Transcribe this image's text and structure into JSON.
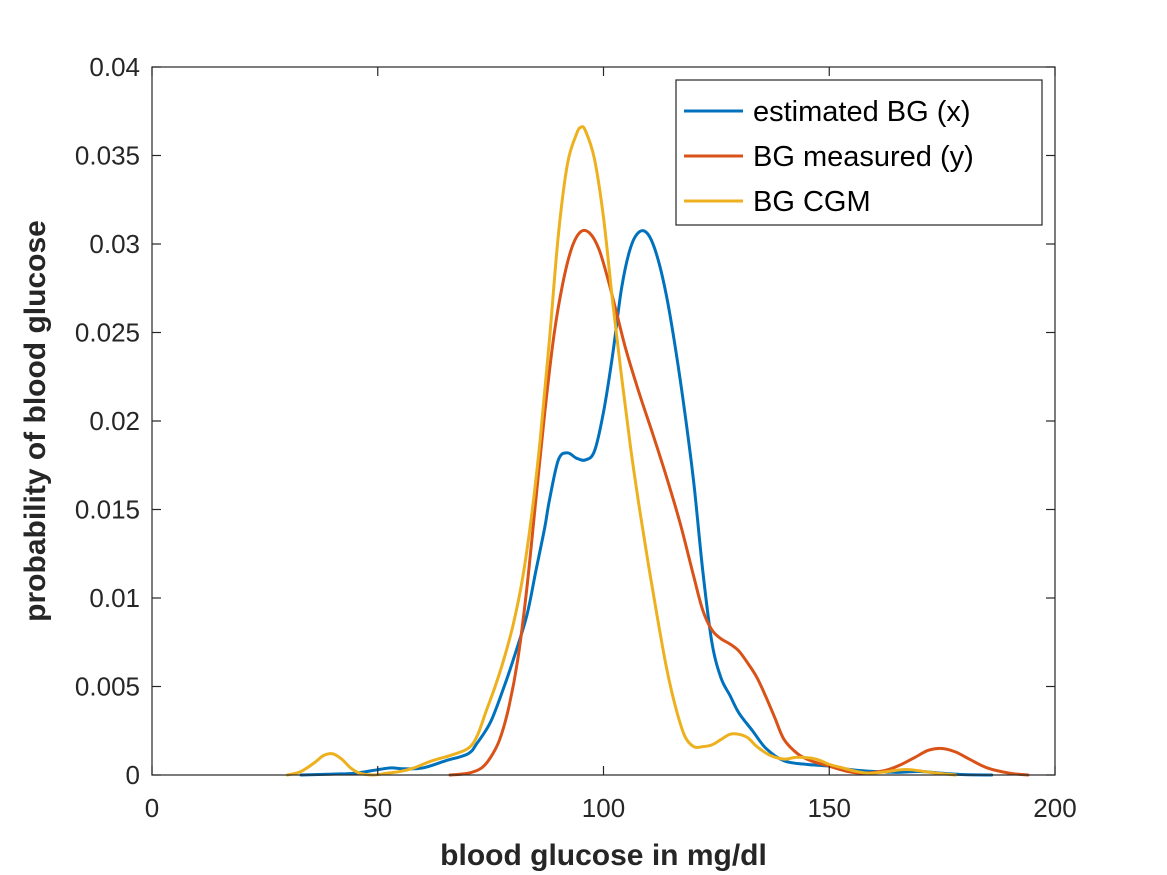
{
  "chart_data": {
    "type": "line",
    "title": "",
    "xlabel": "blood glucose in mg/dl",
    "ylabel": "probability of blood glucose",
    "xlim": [
      0,
      200
    ],
    "ylim": [
      0,
      0.04
    ],
    "xticks": [
      0,
      50,
      100,
      150,
      200
    ],
    "xtick_labels": [
      "0",
      "50",
      "100",
      "150",
      "200"
    ],
    "yticks": [
      0,
      0.005,
      0.01,
      0.015,
      0.02,
      0.025,
      0.03,
      0.035,
      0.04
    ],
    "ytick_labels": [
      "0",
      "0.005",
      "0.01",
      "0.015",
      "0.02",
      "0.025",
      "0.03",
      "0.035",
      "0.04"
    ],
    "grid": false,
    "legend_position": "top-right",
    "series": [
      {
        "name": "estimated BG (x)",
        "color": "#0072BD",
        "x": [
          33,
          40,
          45,
          50,
          53,
          56,
          60,
          65,
          70,
          72,
          75,
          78,
          80,
          83,
          85,
          87,
          88,
          90,
          92,
          94,
          96,
          98,
          100,
          102,
          104,
          106,
          108,
          110,
          112,
          114,
          116,
          118,
          120,
          122,
          124,
          126,
          128,
          130,
          133,
          136,
          140,
          145,
          150,
          155,
          160,
          165,
          170,
          175,
          180,
          186
        ],
        "y": [
          0,
          5e-05,
          0.0001,
          0.0003,
          0.0004,
          0.00035,
          0.0004,
          0.0008,
          0.0012,
          0.0018,
          0.003,
          0.005,
          0.0065,
          0.009,
          0.0115,
          0.014,
          0.0155,
          0.0178,
          0.0182,
          0.0179,
          0.0178,
          0.0183,
          0.0205,
          0.0237,
          0.0275,
          0.0298,
          0.0307,
          0.0305,
          0.0292,
          0.027,
          0.024,
          0.0205,
          0.0165,
          0.0115,
          0.0075,
          0.0055,
          0.0045,
          0.0035,
          0.0025,
          0.0015,
          0.0008,
          0.0006,
          0.0005,
          0.0003,
          0.0002,
          0.00015,
          0.0002,
          0.0001,
          2e-05,
          0
        ]
      },
      {
        "name": "BG measured (y)",
        "color": "#D95319",
        "x": [
          66,
          70,
          73,
          75,
          77,
          79,
          81,
          83,
          85,
          87,
          89,
          91,
          93,
          95,
          97,
          99,
          101,
          103,
          105,
          108,
          111,
          114,
          117,
          120,
          122,
          124,
          126,
          128,
          130,
          132,
          134,
          136,
          138,
          140,
          143,
          146,
          150,
          154,
          157,
          160,
          163,
          166,
          169,
          172,
          175,
          178,
          181,
          185,
          190,
          194
        ],
        "y": [
          0,
          0.0001,
          0.0004,
          0.001,
          0.002,
          0.0038,
          0.0065,
          0.0105,
          0.0155,
          0.0205,
          0.0248,
          0.0278,
          0.0298,
          0.0307,
          0.0306,
          0.0297,
          0.028,
          0.026,
          0.024,
          0.0215,
          0.0192,
          0.0168,
          0.0142,
          0.0112,
          0.0093,
          0.0082,
          0.0077,
          0.0074,
          0.007,
          0.0063,
          0.0055,
          0.0044,
          0.0032,
          0.002,
          0.0012,
          0.0008,
          0.0005,
          0.0002,
          0.0001,
          0.00015,
          0.0003,
          0.0006,
          0.001,
          0.0014,
          0.0015,
          0.0013,
          0.0009,
          0.0004,
          0.0001,
          0
        ]
      },
      {
        "name": "BG CGM",
        "color": "#EDB120",
        "x": [
          30,
          33,
          36,
          38,
          40,
          42,
          44,
          46,
          49,
          52,
          55,
          58,
          62,
          66,
          70,
          72,
          74,
          76,
          78,
          80,
          82,
          84,
          86,
          88,
          90,
          92,
          94,
          95,
          96,
          98,
          100,
          102,
          104,
          106,
          108,
          110,
          112,
          114,
          116,
          118,
          120,
          122,
          124,
          126,
          128,
          130,
          132,
          134,
          137,
          140,
          143,
          147,
          150,
          153,
          156,
          159,
          163,
          166,
          168,
          171,
          174,
          178
        ],
        "y": [
          0,
          0.0002,
          0.0007,
          0.0011,
          0.0012,
          0.0009,
          0.0004,
          0.0001,
          0,
          0.0001,
          0.0002,
          0.0004,
          0.0008,
          0.0011,
          0.0015,
          0.0022,
          0.0036,
          0.005,
          0.0066,
          0.0085,
          0.011,
          0.0145,
          0.019,
          0.0245,
          0.0305,
          0.0345,
          0.0362,
          0.0366,
          0.0364,
          0.0348,
          0.0315,
          0.0268,
          0.0225,
          0.0185,
          0.015,
          0.0118,
          0.0088,
          0.006,
          0.0038,
          0.0022,
          0.0016,
          0.0016,
          0.0017,
          0.002,
          0.0023,
          0.0023,
          0.0021,
          0.0016,
          0.0011,
          0.0009,
          0.001,
          0.0009,
          0.0006,
          0.0004,
          0.0002,
          0.0001,
          0.0002,
          0.0003,
          0.0003,
          0.0002,
          0.0001,
          0
        ]
      }
    ]
  }
}
